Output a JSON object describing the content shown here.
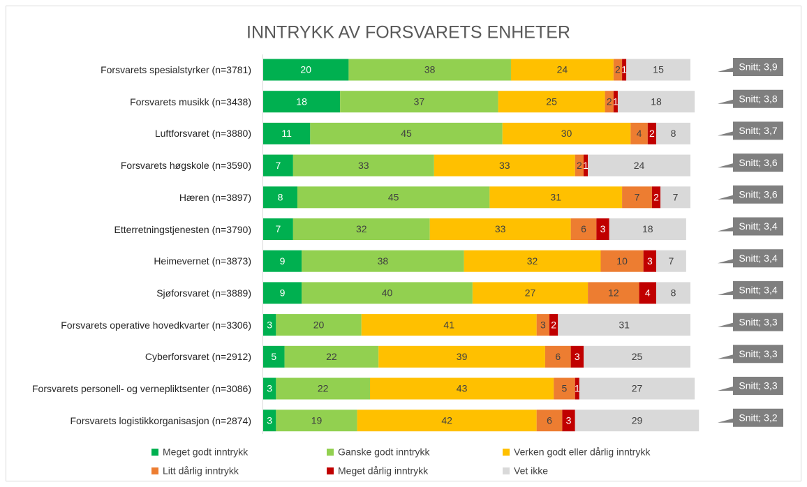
{
  "chart_data": {
    "type": "stacked-bar-horizontal",
    "title": "INNTRYKK AV FORSVARETS ENHETER",
    "categories": [
      "Forsvarets spesialstyrker (n=3781)",
      "Forsvarets musikk (n=3438)",
      "Luftforsvaret (n=3880)",
      "Forsvarets høgskole (n=3590)",
      "Hæren (n=3897)",
      "Etterretningstjenesten (n=3790)",
      "Heimevernet (n=3873)",
      "Sjøforsvaret (n=3889)",
      "Forsvarets operative hovedkvarter (n=3306)",
      "Cyberforsvaret (n=2912)",
      "Forsvarets personell- og vernepliktsenter (n=3086)",
      "Forsvarets logistikkorganisasjon (n=2874)"
    ],
    "series": [
      {
        "name": "Meget godt inntrykk",
        "color": "#00b050",
        "values": [
          20,
          18,
          11,
          7,
          8,
          7,
          9,
          9,
          3,
          5,
          3,
          3
        ]
      },
      {
        "name": "Ganske godt inntrykk",
        "color": "#92d050",
        "values": [
          38,
          37,
          45,
          33,
          45,
          32,
          38,
          40,
          20,
          22,
          22,
          19
        ]
      },
      {
        "name": "Verken godt eller dårlig inntrykk",
        "color": "#ffc000",
        "values": [
          24,
          25,
          30,
          33,
          31,
          33,
          32,
          27,
          41,
          39,
          43,
          42
        ]
      },
      {
        "name": "Litt dårlig inntrykk",
        "color": "#ed7d31",
        "values": [
          2,
          2,
          4,
          2,
          7,
          6,
          10,
          12,
          3,
          6,
          5,
          6
        ]
      },
      {
        "name": "Meget dårlig inntrykk",
        "color": "#c00000",
        "values": [
          1,
          1,
          2,
          1,
          2,
          3,
          3,
          4,
          2,
          3,
          1,
          3
        ]
      },
      {
        "name": "Vet ikke",
        "color": "#d9d9d9",
        "values": [
          15,
          18,
          8,
          24,
          7,
          18,
          7,
          8,
          31,
          25,
          27,
          29
        ]
      }
    ],
    "annotations": [
      "Snitt; 3,9",
      "Snitt; 3,8",
      "Snitt; 3,7",
      "Snitt; 3,6",
      "Snitt; 3,6",
      "Snitt; 3,4",
      "Snitt; 3,4",
      "Snitt; 3,4",
      "Snitt; 3,3",
      "Snitt; 3,3",
      "Snitt; 3,3",
      "Snitt; 3,2"
    ]
  }
}
